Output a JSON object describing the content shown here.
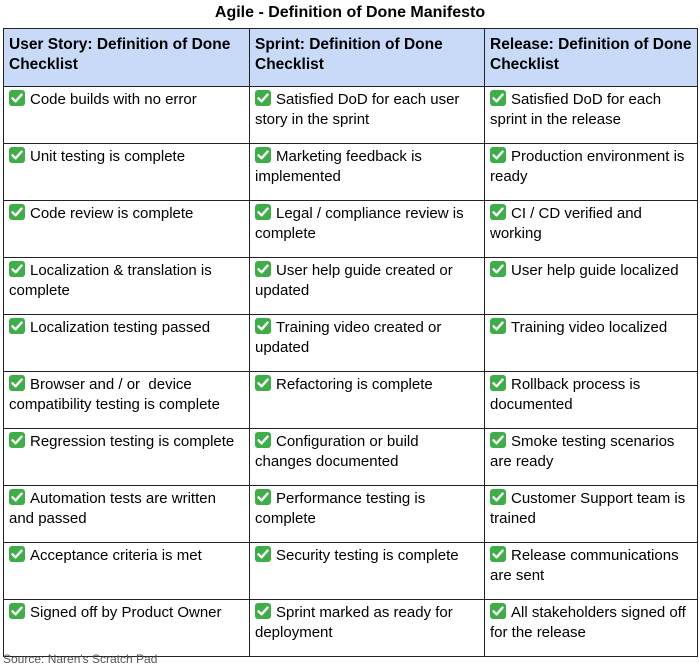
{
  "title": "Agile - Definition of Done Manifesto",
  "table": {
    "headers": [
      "User Story: Definition of Done Checklist",
      "Sprint: Definition of Done Checklist",
      "Release: Definition of Done Checklist"
    ],
    "rows": [
      [
        "Code builds with no error",
        "Satisfied DoD for each user story in the sprint",
        "Satisfied DoD for each sprint in the release"
      ],
      [
        "Unit testing is complete",
        "Marketing feedback is implemented",
        "Production environment is ready"
      ],
      [
        "Code review is complete",
        "Legal / compliance review is complete",
        "CI / CD verified and working"
      ],
      [
        "Localization & translation is complete",
        "User help guide created or updated",
        "User help guide localized"
      ],
      [
        "Localization testing passed",
        "Training video created or updated",
        "Training video localized"
      ],
      [
        "Browser and / or  device compatibility testing is complete",
        "Refactoring is complete",
        "Rollback process is documented"
      ],
      [
        "Regression testing is complete",
        "Configuration or build changes documented",
        "Smoke testing scenarios are ready"
      ],
      [
        "Automation tests are written and passed",
        "Performance testing is complete",
        "Customer Support team is trained"
      ],
      [
        "Acceptance criteria is met",
        "Security testing is complete",
        "Release communications are sent"
      ],
      [
        "Signed off by Product Owner",
        "Sprint marked as ready for deployment",
        "All stakeholders signed off for the release"
      ]
    ]
  },
  "source": "Source: Naren's Scratch Pad"
}
